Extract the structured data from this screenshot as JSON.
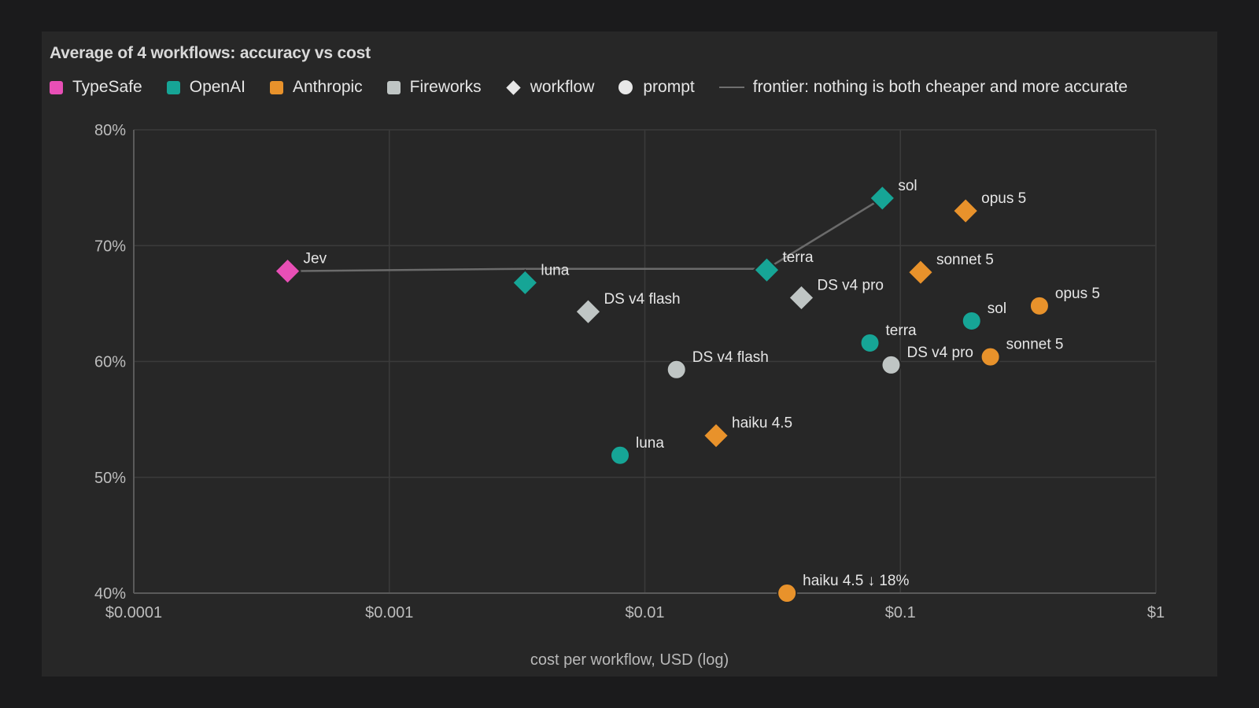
{
  "chart_data": {
    "type": "scatter",
    "title": "Average of 4 workflows: accuracy vs cost",
    "xlabel": "cost per workflow, USD (log)",
    "ylabel": "",
    "x_scale": "log",
    "xlim": [
      0.0001,
      1
    ],
    "ylim": [
      40,
      80
    ],
    "x_ticks": [
      0.0001,
      0.001,
      0.01,
      0.1,
      1
    ],
    "x_tick_labels": [
      "$0.0001",
      "$0.001",
      "$0.01",
      "$0.1",
      "$1"
    ],
    "y_ticks": [
      40,
      50,
      60,
      70,
      80
    ],
    "y_tick_labels": [
      "40%",
      "50%",
      "60%",
      "70%",
      "80%"
    ],
    "grid": true,
    "legend": {
      "placement": "top-left",
      "providers": [
        {
          "name": "TypeSafe",
          "color": "#e84fb6"
        },
        {
          "name": "OpenAI",
          "color": "#16a596"
        },
        {
          "name": "Anthropic",
          "color": "#e8922b"
        },
        {
          "name": "Fireworks",
          "color": "#bfc5c4"
        }
      ],
      "shapes": [
        {
          "name": "workflow",
          "marker": "diamond"
        },
        {
          "name": "prompt",
          "marker": "circle"
        }
      ],
      "frontier_label": "frontier: nothing is both cheaper and more accurate"
    },
    "frontier": [
      {
        "x": 0.0004,
        "y": 67.8
      },
      {
        "x": 0.0034,
        "y": 68.0
      },
      {
        "x": 0.03,
        "y": 68.0
      },
      {
        "x": 0.085,
        "y": 74.1
      }
    ],
    "points": [
      {
        "label": "Jev",
        "provider": "TypeSafe",
        "kind": "workflow",
        "x": 0.0004,
        "y": 67.8
      },
      {
        "label": "luna",
        "provider": "OpenAI",
        "kind": "workflow",
        "x": 0.0034,
        "y": 66.8
      },
      {
        "label": "DS v4 flash",
        "provider": "Fireworks",
        "kind": "workflow",
        "x": 0.006,
        "y": 64.3
      },
      {
        "label": "terra",
        "provider": "OpenAI",
        "kind": "workflow",
        "x": 0.03,
        "y": 67.9
      },
      {
        "label": "DS v4 pro",
        "provider": "Fireworks",
        "kind": "workflow",
        "x": 0.041,
        "y": 65.5
      },
      {
        "label": "sol",
        "provider": "OpenAI",
        "kind": "workflow",
        "x": 0.085,
        "y": 74.1
      },
      {
        "label": "opus 5",
        "provider": "Anthropic",
        "kind": "workflow",
        "x": 0.18,
        "y": 73.0
      },
      {
        "label": "sonnet 5",
        "provider": "Anthropic",
        "kind": "workflow",
        "x": 0.12,
        "y": 67.7
      },
      {
        "label": "haiku 4.5",
        "provider": "Anthropic",
        "kind": "workflow",
        "x": 0.019,
        "y": 53.6
      },
      {
        "label": "luna",
        "provider": "OpenAI",
        "kind": "prompt",
        "x": 0.008,
        "y": 51.9
      },
      {
        "label": "DS v4 flash",
        "provider": "Fireworks",
        "kind": "prompt",
        "x": 0.0133,
        "y": 59.3
      },
      {
        "label": "terra",
        "provider": "OpenAI",
        "kind": "prompt",
        "x": 0.076,
        "y": 61.6
      },
      {
        "label": "DS v4 pro",
        "provider": "Fireworks",
        "kind": "prompt",
        "x": 0.092,
        "y": 59.7
      },
      {
        "label": "sol",
        "provider": "OpenAI",
        "kind": "prompt",
        "x": 0.19,
        "y": 63.5
      },
      {
        "label": "sonnet 5",
        "provider": "Anthropic",
        "kind": "prompt",
        "x": 0.225,
        "y": 60.4
      },
      {
        "label": "opus 5",
        "provider": "Anthropic",
        "kind": "prompt",
        "x": 0.35,
        "y": 64.8
      },
      {
        "label": "haiku 4.5 ↓ 18%",
        "provider": "Anthropic",
        "kind": "prompt",
        "x": 0.036,
        "y": 40
      }
    ]
  }
}
